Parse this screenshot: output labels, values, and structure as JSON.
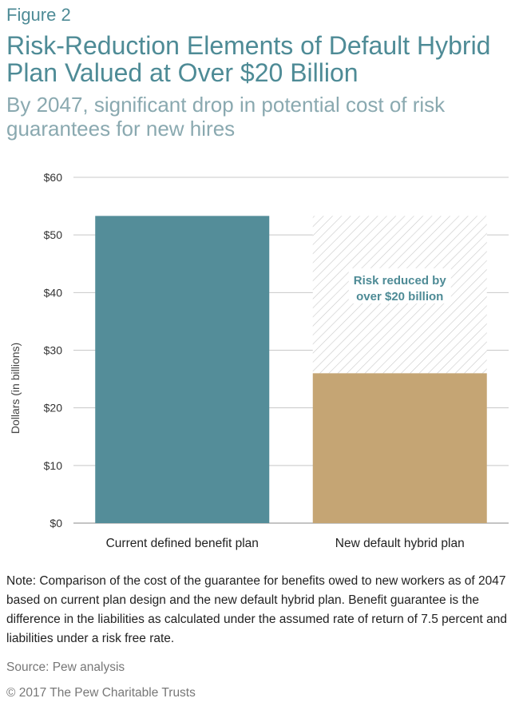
{
  "figure_label": "Figure 2",
  "title": "Risk-Reduction Elements of Default Hybrid Plan Valued at Over $20 Billion",
  "subtitle": "By 2047, significant drop in potential cost of risk guarantees for new hires",
  "chart_data": {
    "type": "bar",
    "categories": [
      "Current defined benefit plan",
      "New default hybrid plan"
    ],
    "values": [
      53.3,
      26.0
    ],
    "colors": [
      "#548d99",
      "#c5a574"
    ],
    "hatched_region": {
      "category": "New default hybrid plan",
      "from": 26.0,
      "to": 53.3,
      "pattern": "diagonal-hatch"
    },
    "ylabel": "Dollars (in billions)",
    "ylim": [
      0,
      60
    ],
    "yticks": [
      0,
      10,
      20,
      30,
      40,
      50,
      60
    ],
    "ytick_labels": [
      "$0",
      "$10",
      "$20",
      "$30",
      "$40",
      "$50",
      "$60"
    ],
    "grid": true,
    "annotation": {
      "lines": [
        "Risk reduced by",
        "over $20 billion"
      ],
      "color": "#4e8b96"
    }
  },
  "note": "Note: Comparison of the cost of the guarantee for benefits owed to new workers as of 2047 based on current plan design and the new default hybrid plan. Benefit guarantee is the difference in the liabilities as calculated under the assumed rate of return of 7.5 percent and liabilities under a risk free rate.",
  "source": "Source: Pew analysis",
  "copyright": "© 2017 The Pew Charitable Trusts"
}
